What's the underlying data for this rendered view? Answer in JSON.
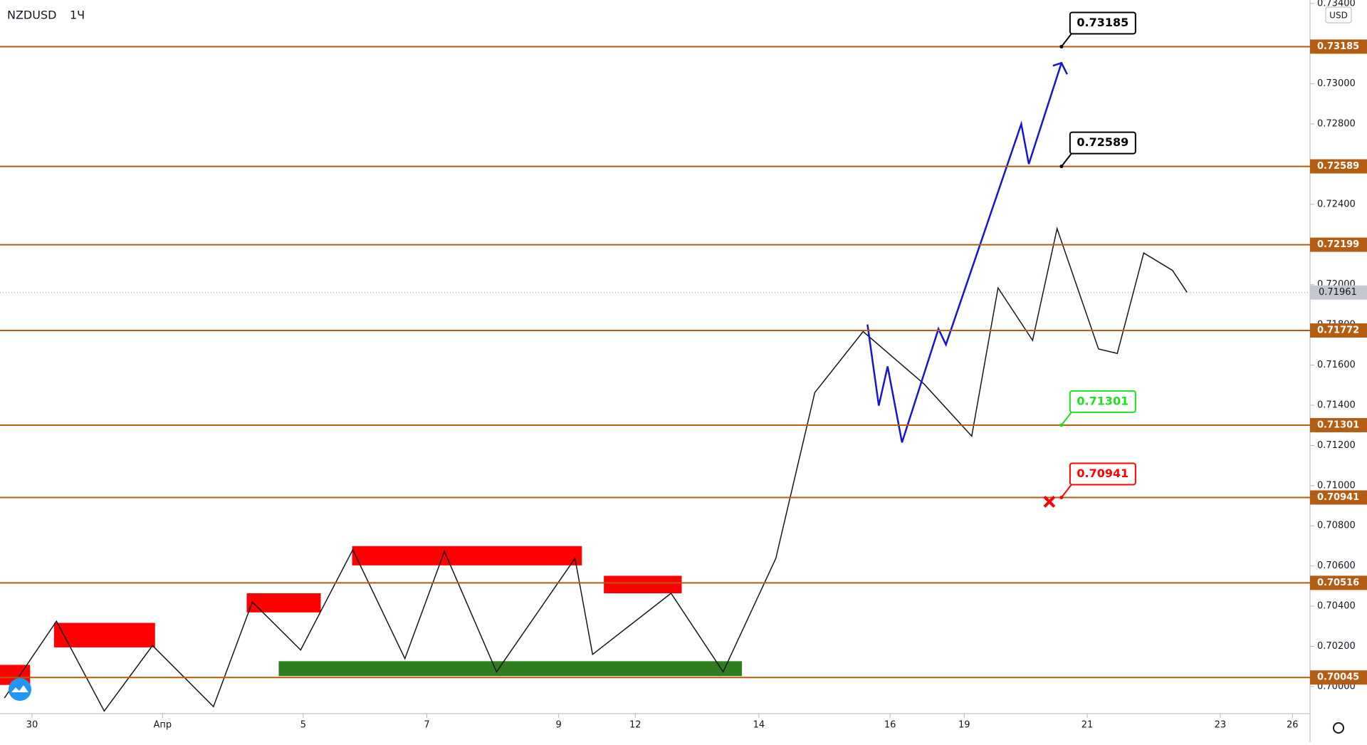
{
  "chart_data": {
    "type": "line",
    "symbol": "NZDUSD",
    "interval": "1Ч",
    "currency": "USD",
    "xlim": [
      -0.51,
      20.36
    ],
    "xticks": [
      {
        "value": 0,
        "label": "30"
      },
      {
        "value": 2.08,
        "label": "Апр"
      },
      {
        "value": 4.32,
        "label": "5"
      },
      {
        "value": 6.29,
        "label": "7"
      },
      {
        "value": 8.39,
        "label": "9"
      },
      {
        "value": 9.61,
        "label": "12"
      },
      {
        "value": 11.58,
        "label": "14"
      },
      {
        "value": 13.67,
        "label": "16"
      },
      {
        "value": 14.85,
        "label": "19"
      },
      {
        "value": 16.81,
        "label": "21"
      },
      {
        "value": 18.93,
        "label": "23"
      },
      {
        "value": 20.08,
        "label": "26"
      }
    ],
    "ylim": [
      0.69865,
      0.73417
    ],
    "yticks": [
      {
        "value": 0.734,
        "label": "0.73400"
      },
      {
        "value": 0.73,
        "label": "0.73000"
      },
      {
        "value": 0.728,
        "label": "0.72800"
      },
      {
        "value": 0.724,
        "label": "0.72400"
      },
      {
        "value": 0.72,
        "label": "0.72000"
      },
      {
        "value": 0.718,
        "label": "0.71800"
      },
      {
        "value": 0.716,
        "label": "0.71600"
      },
      {
        "value": 0.714,
        "label": "0.71400"
      },
      {
        "value": 0.712,
        "label": "0.71200"
      },
      {
        "value": 0.71,
        "label": "0.71000"
      },
      {
        "value": 0.708,
        "label": "0.70800"
      },
      {
        "value": 0.706,
        "label": "0.70600"
      },
      {
        "value": 0.704,
        "label": "0.70400"
      },
      {
        "value": 0.702,
        "label": "0.70200"
      },
      {
        "value": 0.7,
        "label": "0.70000"
      }
    ],
    "levels": [
      0.73185,
      0.72589,
      0.72199,
      0.71772,
      0.71301,
      0.70941,
      0.70516,
      0.70045
    ],
    "level_color": "#b35c12",
    "current_price": 0.71961,
    "callouts": [
      {
        "value": 0.73185,
        "color": "#000000",
        "x": 16.4
      },
      {
        "value": 0.72589,
        "color": "#000000",
        "x": 16.4
      },
      {
        "value": 0.71301,
        "color": "#22dd22",
        "x": 16.4
      },
      {
        "value": 0.70941,
        "color": "#ff0000",
        "x": 16.4
      }
    ],
    "zones": [
      {
        "color": "#ff0000",
        "x": [
          -0.51,
          -0.03
        ],
        "y": [
          0.70008,
          0.70108
        ]
      },
      {
        "color": "#ff0000",
        "x": [
          0.35,
          1.96
        ],
        "y": [
          0.70195,
          0.70317
        ]
      },
      {
        "color": "#ff0000",
        "x": [
          3.42,
          4.6
        ],
        "y": [
          0.70369,
          0.70464
        ]
      },
      {
        "color": "#ff0000",
        "x": [
          5.1,
          8.76
        ],
        "y": [
          0.70603,
          0.70699
        ]
      },
      {
        "color": "#ff0000",
        "x": [
          9.11,
          10.35
        ],
        "y": [
          0.70464,
          0.70551
        ]
      },
      {
        "color": "#2e7d1e",
        "x": [
          3.93,
          11.31
        ],
        "y": [
          0.70052,
          0.70126
        ]
      }
    ],
    "series": [
      {
        "name": "NZDUSD",
        "color": "#131722",
        "x": [
          -0.44,
          0.39,
          1.15,
          1.92,
          2.89,
          3.51,
          4.28,
          5.11,
          5.94,
          6.57,
          7.4,
          8.65,
          8.93,
          10.18,
          11.01,
          11.85,
          12.47,
          13.24,
          14.21,
          14.97,
          15.39,
          15.94,
          16.33,
          16.99,
          17.29,
          17.71,
          18.17,
          18.4
        ],
        "values": [
          0.69943,
          0.70325,
          0.69878,
          0.70204,
          0.699,
          0.70421,
          0.70182,
          0.70681,
          0.70139,
          0.70673,
          0.70073,
          0.70638,
          0.7016,
          0.70464,
          0.70073,
          0.70638,
          0.71463,
          0.71767,
          0.71506,
          0.71246,
          0.71984,
          0.71723,
          0.72279,
          0.7168,
          0.71658,
          0.72158,
          0.72071,
          0.71962
        ]
      },
      {
        "name": "Projection",
        "color": "#1515d6",
        "x": [
          13.31,
          13.49,
          13.63,
          13.86,
          14.44,
          14.56,
          15.76,
          15.88,
          16.4
        ],
        "values": [
          0.71802,
          0.71398,
          0.71593,
          0.71215,
          0.7178,
          0.71702,
          0.728,
          0.72601,
          0.73104
        ]
      }
    ]
  }
}
